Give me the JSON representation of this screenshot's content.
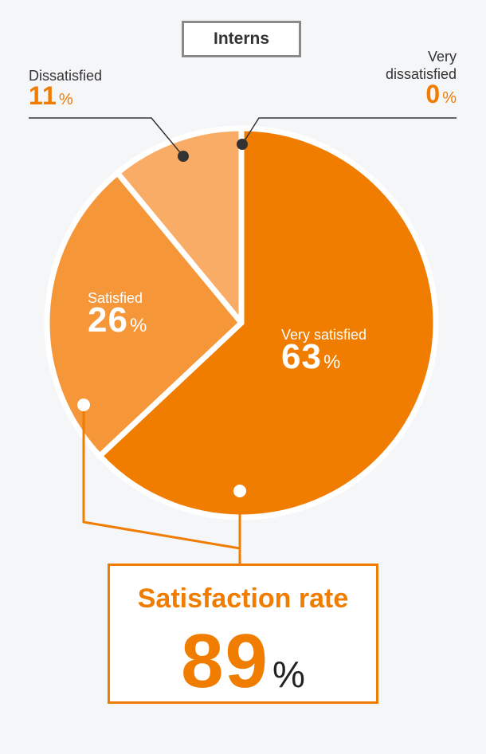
{
  "chart_data": {
    "type": "pie",
    "title": "Interns",
    "slices": [
      {
        "label": "Very satisfied",
        "value": 63,
        "color": "#f07c00"
      },
      {
        "label": "Satisfied",
        "value": 26,
        "color": "#f59638"
      },
      {
        "label": "Dissatisfied",
        "value": 11,
        "color": "#f8ac66"
      },
      {
        "label": "Very dissatisfied",
        "value": 0,
        "color": "#fbc48a"
      }
    ],
    "unit": "%",
    "summary": {
      "label": "Satisfaction rate",
      "value": 89,
      "unit": "%"
    }
  },
  "labels": {
    "very_satisfied": {
      "name": "Very satisfied",
      "value": "63",
      "unit": "%"
    },
    "satisfied": {
      "name": "Satisfied",
      "value": "26",
      "unit": "%"
    },
    "dissatisfied": {
      "name": "Dissatisfied",
      "value": "11",
      "unit": "%"
    },
    "very_dissatisfied": {
      "name_line1": "Very",
      "name_line2": "dissatisfied",
      "value": "0",
      "unit": "%"
    }
  },
  "summary": {
    "title": "Satisfaction rate",
    "value": "89",
    "unit": "%"
  },
  "colors": {
    "accent": "#f07c00",
    "connector": "#f07c00",
    "leader": "#333333"
  }
}
